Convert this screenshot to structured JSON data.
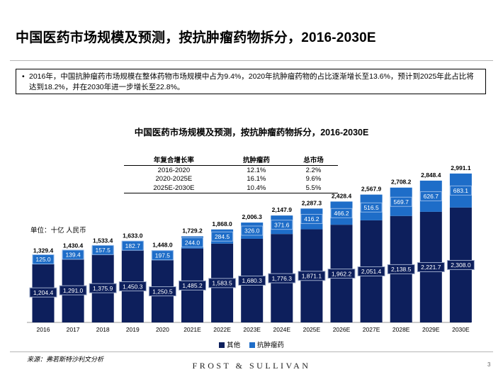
{
  "page": {
    "title": "中国医药市场规模及预测，按抗肿瘤药物拆分，2016-2030E",
    "summary": "2016年，中国抗肿瘤药市场规模在整体药物市场规模中占为9.4%，2020年抗肿瘤药物的占比逐渐增长至13.6%，预计到2025年此占比将达到18.2%，并在2030年进一步增长至22.8%。",
    "bullet": "•",
    "unit": "单位：十亿 人民币",
    "source": "来源：弗若斯特沙利文分析",
    "footer": "FROST & SULLIVAN",
    "page_number": "3"
  },
  "cagr_table": {
    "headers": [
      "年复合增长率",
      "抗肿瘤药",
      "总市场"
    ],
    "rows": [
      [
        "2016-2020",
        "12.1%",
        "2.2%"
      ],
      [
        "2020-2025E",
        "16.1%",
        "9.6%"
      ],
      [
        "2025E-2030E",
        "10.4%",
        "5.5%"
      ]
    ]
  },
  "chart_data": {
    "type": "bar",
    "stacked": true,
    "title": "中国医药市场规模及预测，按抗肿瘤药物拆分，2016-2030E",
    "categories": [
      "2016",
      "2017",
      "2018",
      "2019",
      "2020",
      "2021E",
      "2022E",
      "2023E",
      "2024E",
      "2025E",
      "2026E",
      "2027E",
      "2028E",
      "2029E",
      "2030E"
    ],
    "series": [
      {
        "name": "其他",
        "color": "#0d1f5c",
        "values": [
          1204.4,
          1291.0,
          1375.9,
          1450.3,
          1250.5,
          1485.2,
          1583.5,
          1680.3,
          1776.3,
          1871.1,
          1962.2,
          2051.4,
          2138.5,
          2221.7,
          2308.0
        ]
      },
      {
        "name": "抗肿瘤药",
        "color": "#1e6dc8",
        "values": [
          125.0,
          139.4,
          157.5,
          182.7,
          197.5,
          244.0,
          284.5,
          326.0,
          371.6,
          416.2,
          466.2,
          516.5,
          569.7,
          626.7,
          683.1
        ]
      }
    ],
    "totals": [
      "1,329.4",
      "1,430.4",
      "1,533.4",
      "1,633.0",
      "1,448.0",
      "1,729.2",
      "1,868.0",
      "2,006.3",
      "2,147.9",
      "2,287.3",
      "2,428.4",
      "2,567.9",
      "2,708.2",
      "2,848.4",
      "2,991.1"
    ],
    "ylim": [
      0,
      3000
    ],
    "legend_position": "bottom",
    "grid": false
  }
}
